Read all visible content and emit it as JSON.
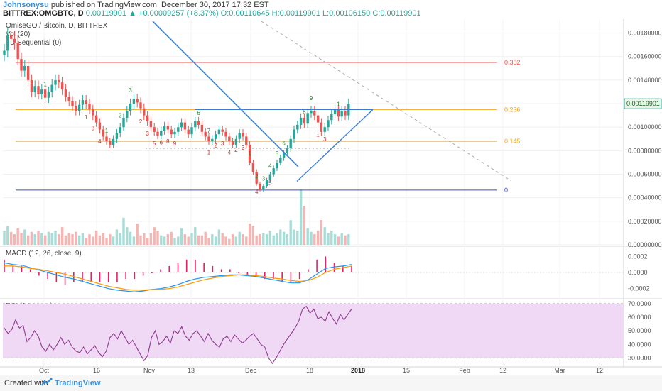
{
  "header": {
    "author": "Johnsonysu",
    "published": "published on TradingView.com, December 30, 2017 17:32 EST",
    "symbol": "BITTREX:OMGBTC, D",
    "last": "0.00119901",
    "change": "▲ +0.00009257 (+8.37%)",
    "ohlc": "O:0.00110645 H:0.00119901 L:0.00106150 C:0.00119901"
  },
  "panels": {
    "main_title": "OmiseGO / Bitcoin, D, BITTREX",
    "vol_label": "Vol (20)",
    "td_label": "TD Sequential (0)",
    "macd_label": "MACD (12, 26, close, 9)",
    "rsi_label": "RSI (14, close)"
  },
  "footer": {
    "created_with": "Created with",
    "brand": "TradingView"
  },
  "colors": {
    "up": "#26a69a",
    "down": "#ef5350",
    "fib_382": "#ef5350",
    "fib_236": "#f5a623",
    "fib_145": "#f5a623",
    "fib_0": "#3f51b5",
    "trendline": "#3a7bd5",
    "macd": "#2196f3",
    "signal": "#ff9800",
    "hist": "#e91e63",
    "rsi": "#8e3a8e",
    "rsi_band": "#efd9f5"
  },
  "chart_data": [
    {
      "type": "candlestick",
      "title": "OmiseGO / Bitcoin, D, BITTREX",
      "ylim": [
        0.0,
        0.0019
      ],
      "y_ticks": [
        "0.00180000",
        "0.00160000",
        "0.00140000",
        "0.00120000",
        "0.00100000",
        "0.00080000",
        "0.00060000",
        "0.00040000",
        "0.00020000",
        "0.00000000"
      ],
      "last_price_label": "0.00119901",
      "x_ticks": [
        "Oct",
        "16",
        "Nov",
        "13",
        "Dec",
        "18",
        "2018",
        "15",
        "Feb",
        "12",
        "Mar",
        "12"
      ],
      "fib_levels": [
        {
          "label": "0.382",
          "value": 0.00155
        },
        {
          "label": "0.236",
          "value": 0.00115
        },
        {
          "label": "0.145",
          "value": 0.00088
        },
        {
          "label": "0",
          "value": 0.000465
        }
      ],
      "close": [
        0.00165,
        0.00178,
        0.00175,
        0.00172,
        0.00158,
        0.00148,
        0.00152,
        0.0014,
        0.0013,
        0.00135,
        0.00128,
        0.00132,
        0.00125,
        0.0013,
        0.00136,
        0.0014,
        0.00138,
        0.00132,
        0.00126,
        0.00122,
        0.00118,
        0.00114,
        0.00119,
        0.00123,
        0.0012,
        0.00115,
        0.0011,
        0.00104,
        0.00098,
        0.00092,
        0.00088,
        0.00085,
        0.0009,
        0.00095,
        0.001,
        0.00108,
        0.00114,
        0.0012,
        0.00124,
        0.00121,
        0.00116,
        0.0011,
        0.00105,
        0.001,
        0.00096,
        0.00093,
        0.00097,
        0.00101,
        0.00098,
        0.00094,
        0.00096,
        0.001,
        0.00104,
        0.00098,
        0.00094,
        0.001,
        0.00105,
        0.00102,
        0.00096,
        0.00092,
        0.00088,
        0.0009,
        0.00094,
        0.00098,
        0.00096,
        0.00092,
        0.00088,
        0.00085,
        0.0009,
        0.00095,
        0.00092,
        0.00085,
        0.0007,
        0.00062,
        0.00052,
        0.00047,
        0.0005,
        0.00055,
        0.0006,
        0.00065,
        0.0007,
        0.00074,
        0.00078,
        0.00082,
        0.0009,
        0.00098,
        0.00102,
        0.00108,
        0.00103,
        0.00112,
        0.00114,
        0.0011,
        0.00104,
        0.00096,
        0.001,
        0.00106,
        0.00111,
        0.00115,
        0.00109,
        0.00114,
        0.0011,
        0.0012
      ],
      "volume": [
        0.00012,
        0.00016,
        0.00011,
        9e-05,
        0.00014,
        0.0001,
        0.00013,
        8e-05,
        0.00011,
        9e-05,
        0.00012,
        0.0001,
        8e-05,
        0.00011,
        0.0001,
        0.00012,
        9e-05,
        0.00015,
        8e-05,
        0.0001,
        9e-05,
        0.00011,
        8e-05,
        0.0001,
        6e-05,
        9e-05,
        7e-05,
        0.00012,
        8e-05,
        0.0001,
        6e-05,
        9e-05,
        7e-05,
        0.00013,
        0.0001,
        0.00023,
        0.00015,
        0.00011,
        7e-05,
        0.00018,
        8e-05,
        0.0001,
        6e-05,
        0.0001,
        0.00015,
        0.00012,
        8e-05,
        7e-05,
        9e-05,
        0.00011,
        6e-05,
        7e-05,
        0.00014,
        9e-05,
        7e-05,
        0.0001,
        0.00015,
        8e-05,
        8e-05,
        0.00011,
        6e-05,
        9e-05,
        7e-05,
        0.00013,
        0.0001,
        7e-05,
        5e-05,
        9e-05,
        7e-05,
        0.00011,
        9e-05,
        7e-05,
        0.00018,
        0.00016,
        8e-05,
        9e-05,
        0.0001,
        9e-05,
        0.00012,
        8e-05,
        0.0001,
        0.00013,
        0.00011,
        9e-05,
        0.00021,
        0.00013,
        0.00012,
        0.00047,
        0.00033,
        0.00014,
        0.00011,
        9e-05,
        0.00012,
        0.00021,
        0.00015,
        0.0001,
        0.00012,
        9e-05,
        7e-05,
        0.0001,
        8e-05,
        9e-05
      ]
    },
    {
      "type": "line",
      "title": "MACD (12, 26, close, 9)",
      "ylim": [
        -0.0003,
        0.0003
      ],
      "y_ticks": [
        "0.0002",
        "0.0000",
        "-0.0002"
      ],
      "series": [
        {
          "name": "MACD",
          "values": [
            0.00012,
            0.0001,
            9e-05,
            6e-05,
            3e-05,
            0.0,
            -3e-05,
            -6e-05,
            -8e-05,
            -0.00011,
            -0.00014,
            -0.00017,
            -0.0002,
            -0.00022,
            -0.00023,
            -0.00024,
            -0.00023,
            -0.00021,
            -0.0002,
            -0.00018,
            -0.00015,
            -0.00011,
            -8e-05,
            -6e-05,
            -5e-05,
            -4e-05,
            -3e-05,
            -3e-05,
            -4e-05,
            -5e-05,
            -7e-05,
            -9e-05,
            -0.00011,
            -0.00013,
            -0.00013,
            -9e-05,
            -2e-05,
            5e-05,
            7e-05,
            8e-05,
            0.0001
          ]
        },
        {
          "name": "Signal",
          "values": [
            8e-05,
            8e-05,
            7e-05,
            5e-05,
            4e-05,
            2e-05,
            0.0,
            -2e-05,
            -5e-05,
            -8e-05,
            -0.00011,
            -0.00014,
            -0.00017,
            -0.00019,
            -0.00021,
            -0.00022,
            -0.00022,
            -0.00021,
            -0.00021,
            -0.0002,
            -0.00018,
            -0.00015,
            -0.00012,
            -9e-05,
            -7e-05,
            -5e-05,
            -4e-05,
            -3e-05,
            -3e-05,
            -4e-05,
            -5e-05,
            -7e-05,
            -8e-05,
            -0.0001,
            -0.00011,
            -0.0001,
            -6e-05,
            0.0,
            4e-05,
            6e-05,
            8e-05
          ]
        }
      ]
    },
    {
      "type": "line",
      "title": "RSI (14, close)",
      "ylim": [
        25,
        72
      ],
      "y_ticks": [
        "70.0000",
        "60.0000",
        "50.0000",
        "40.0000",
        "30.0000"
      ],
      "series": [
        {
          "name": "RSI",
          "values": [
            52,
            48,
            51,
            58,
            52,
            54,
            42,
            45,
            50,
            46,
            38,
            35,
            40,
            36,
            40,
            45,
            40,
            43,
            38,
            35,
            34,
            38,
            33,
            36,
            39,
            34,
            31,
            35,
            45,
            48,
            44,
            50,
            45,
            40,
            43,
            38,
            33,
            28,
            32,
            45,
            50,
            40,
            42,
            46,
            41,
            50,
            48,
            53,
            46,
            43,
            48,
            50,
            46,
            42,
            48,
            43,
            40,
            38,
            44,
            46,
            42,
            47,
            44,
            41,
            43,
            46,
            48,
            44,
            40,
            38,
            30,
            26,
            30,
            35,
            40,
            44,
            48,
            52,
            57,
            66,
            68,
            63,
            66,
            59,
            60,
            57,
            64,
            59,
            55,
            62,
            58,
            62,
            66
          ]
        }
      ]
    }
  ]
}
